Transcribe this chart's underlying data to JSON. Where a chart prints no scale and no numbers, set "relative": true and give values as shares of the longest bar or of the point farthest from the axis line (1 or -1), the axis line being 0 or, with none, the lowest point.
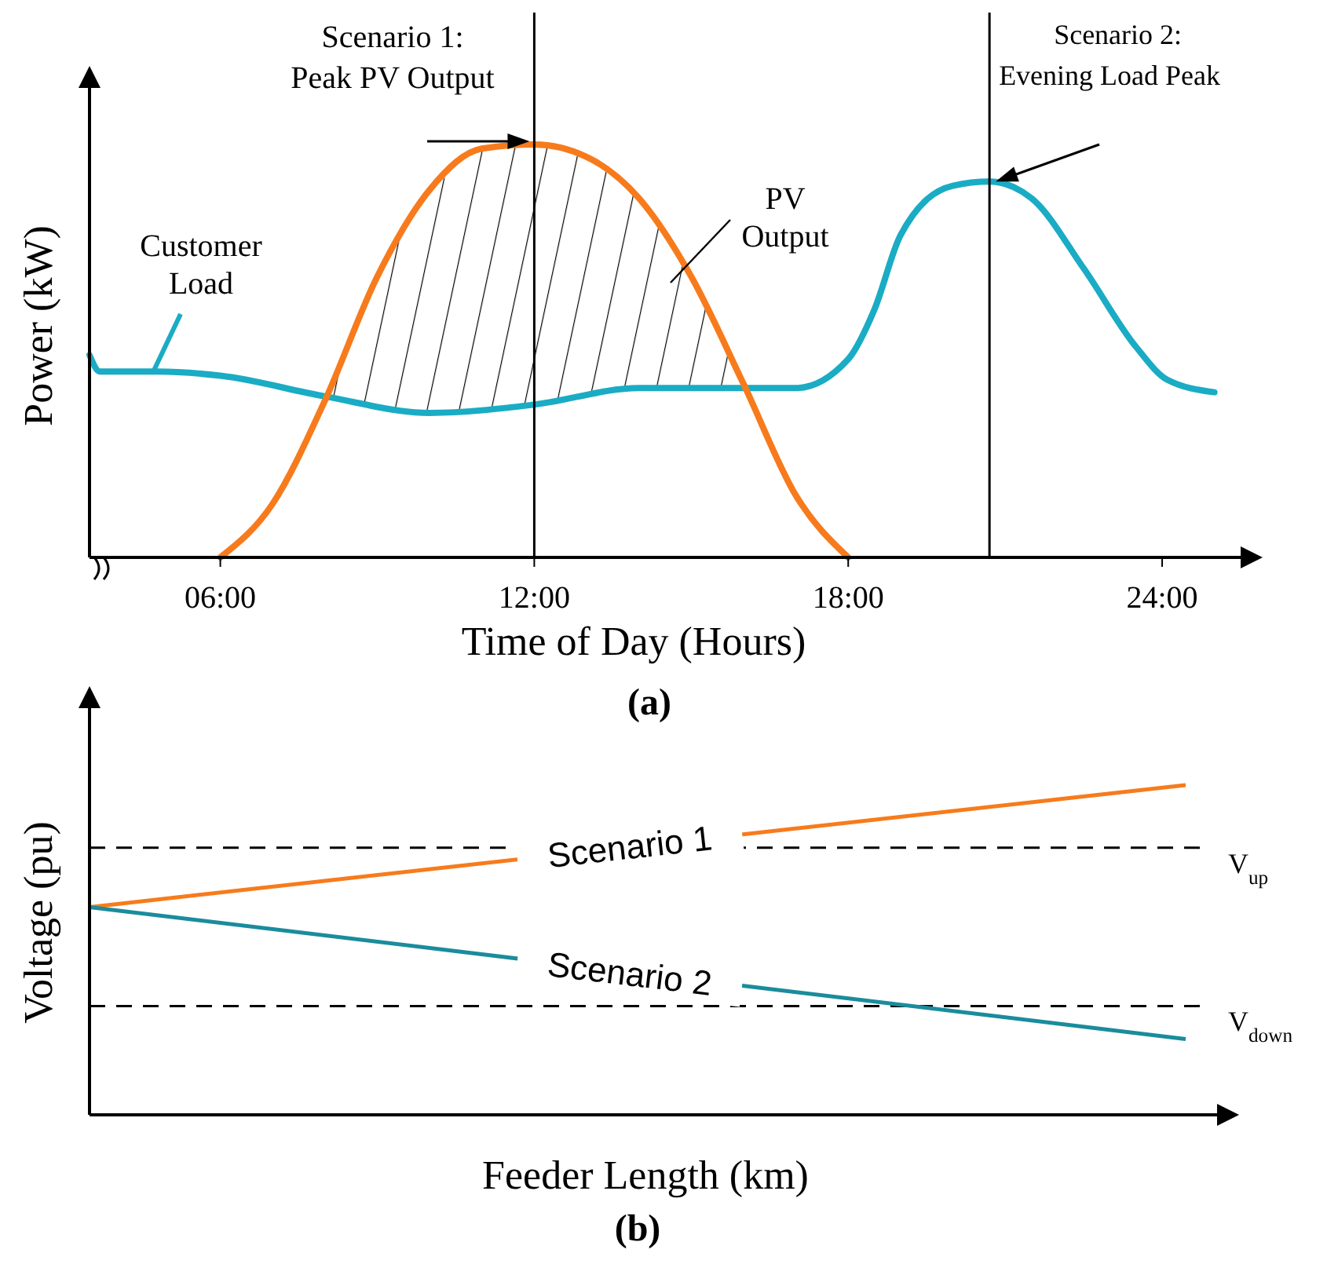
{
  "chart_data": [
    {
      "type": "line",
      "relative": true,
      "xlabel": "Time of Day (Hours)",
      "ylabel": "Power (kW)",
      "xlim": [
        3.5,
        25.5
      ],
      "xticks": [
        {
          "value": 6,
          "label": "06:00"
        },
        {
          "value": 12,
          "label": "12:00"
        },
        {
          "value": 18,
          "label": "18:00"
        },
        {
          "value": 24,
          "label": "24:00"
        }
      ],
      "tick_labels": "x",
      "series": [
        {
          "name": "Customer Load",
          "color": "#1aacc4",
          "x": [
            3.5,
            3.7,
            4.8,
            6,
            8,
            10,
            12,
            14,
            16,
            17,
            18,
            18.5,
            19,
            20,
            20.7,
            21.5,
            22.5,
            23.5,
            24.1,
            25
          ],
          "values": [
            0.49,
            0.45,
            0.45,
            0.44,
            0.39,
            0.35,
            0.37,
            0.41,
            0.41,
            0.41,
            0.48,
            0.6,
            0.78,
            0.9,
            0.91,
            0.87,
            0.7,
            0.51,
            0.43,
            0.4
          ]
        },
        {
          "name": "PV Output",
          "color": "#f77b1c",
          "x": [
            6,
            7,
            8,
            9,
            10,
            11,
            12,
            13,
            14,
            15,
            16,
            17,
            18
          ],
          "values": [
            0,
            0.13,
            0.38,
            0.68,
            0.89,
            0.99,
            1,
            0.97,
            0.87,
            0.68,
            0.42,
            0.15,
            0
          ]
        }
      ],
      "ref_lines": [
        {
          "axis": "x",
          "value": 12,
          "label": "Scenario 1: Peak PV Output"
        },
        {
          "axis": "x",
          "value": 20.7,
          "label": "Scenario 2: Evening Load Peak"
        }
      ],
      "annotations": [
        "(a)"
      ]
    },
    {
      "type": "line",
      "relative": true,
      "xlabel": "Feeder Length (km)",
      "ylabel": "Voltage (pu)",
      "categories": [
        null,
        null
      ],
      "tick_labels": false,
      "series": [
        {
          "name": "Scenario 1",
          "color": "#f77b1c",
          "values": [
            0.63,
            1
          ]
        },
        {
          "name": "Scenario 2",
          "color": "#1a8c9c",
          "values": [
            0.63,
            0.23
          ]
        }
      ],
      "ref_lines": [
        {
          "axis": "y",
          "value": 0.81,
          "label": "V$_{up}$",
          "line_style": "dashed"
        },
        {
          "axis": "y",
          "value": 0.33,
          "label": "V$_{down}$",
          "line_style": "dashed"
        }
      ],
      "annotations": [
        "(b)"
      ]
    }
  ]
}
